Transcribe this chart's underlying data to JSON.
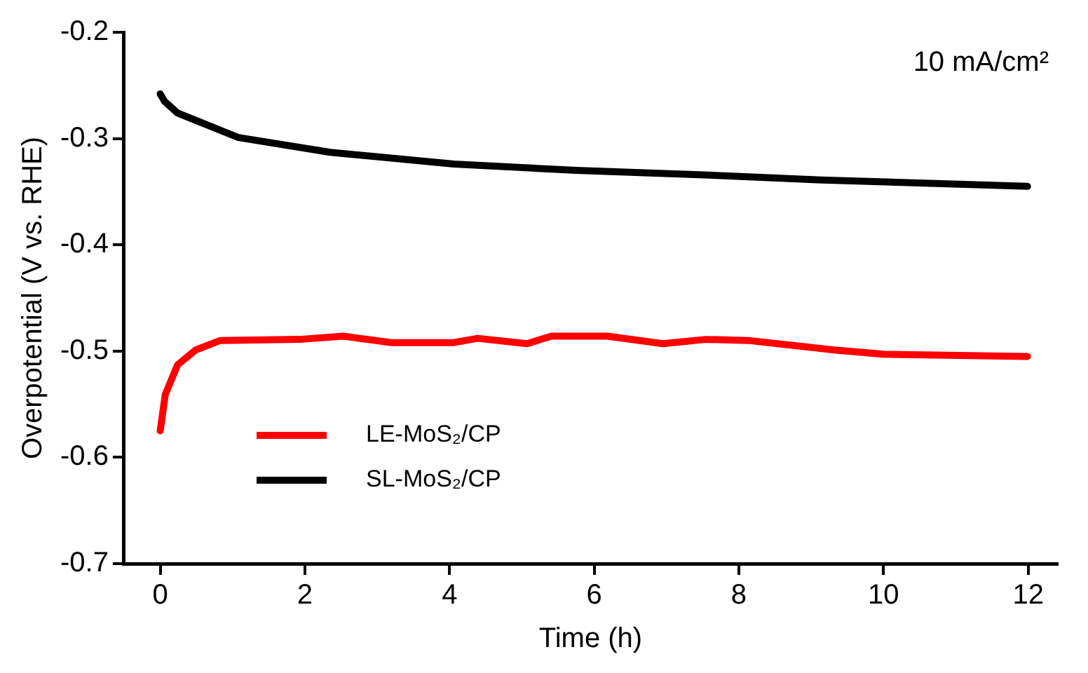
{
  "chart_data": {
    "type": "line",
    "xlabel": "Time (h)",
    "ylabel": "Overpotential (V vs. RHE)",
    "annotations": [
      "10 mA/cm²"
    ],
    "xlim": [
      -0.5,
      12.4
    ],
    "xticks": [
      0,
      2,
      4,
      6,
      8,
      10,
      12
    ],
    "ylim": [
      -0.7,
      -0.2
    ],
    "yticks": [
      -0.7,
      -0.6,
      -0.5,
      -0.4,
      -0.3,
      -0.2
    ],
    "grid": false,
    "legend": "bottom left",
    "marker": "none",
    "line_style": "solid",
    "series": [
      {
        "name": "LE-MoS₂/CP",
        "color": "#ff0000",
        "x": [
          0,
          0.07,
          0.24,
          0.49,
          0.83,
          1.93,
          2.53,
          3.2,
          4.06,
          4.39,
          5.07,
          5.41,
          6.18,
          6.95,
          7.54,
          8.13,
          9.32,
          10.0,
          11.99
        ],
        "values": [
          -0.575,
          -0.541,
          -0.513,
          -0.499,
          -0.49,
          -0.489,
          -0.486,
          -0.492,
          -0.492,
          -0.488,
          -0.493,
          -0.486,
          -0.486,
          -0.493,
          -0.489,
          -0.49,
          -0.499,
          -0.503,
          -0.505
        ]
      },
      {
        "name": "SL-MoS₂/CP",
        "color": "#000000",
        "x": [
          0,
          0.06,
          0.24,
          1.08,
          2.35,
          4.06,
          5.75,
          7.45,
          9.14,
          11.99
        ],
        "values": [
          -0.258,
          -0.265,
          -0.276,
          -0.299,
          -0.313,
          -0.324,
          -0.33,
          -0.334,
          -0.339,
          -0.345
        ]
      }
    ]
  }
}
